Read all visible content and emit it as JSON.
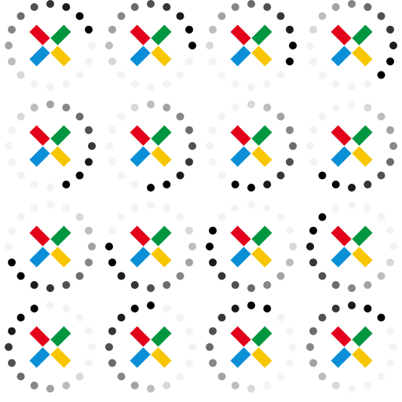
{
  "sheet": {
    "columns": 4,
    "rows": 4,
    "frame_count": 16,
    "background": "#ffffff"
  },
  "logo": {
    "icon": "four-arrow-x-logo-icon",
    "colors": {
      "top_left": "#e2001a",
      "top_right": "#009640",
      "bottom_left": "#0a8fd6",
      "bottom_right": "#f7c600"
    }
  },
  "spinner": {
    "icon": "dotted-ring-spinner-icon",
    "dot_count": 16,
    "dark_color": "#000000",
    "light_color": "#f3f3f3"
  }
}
